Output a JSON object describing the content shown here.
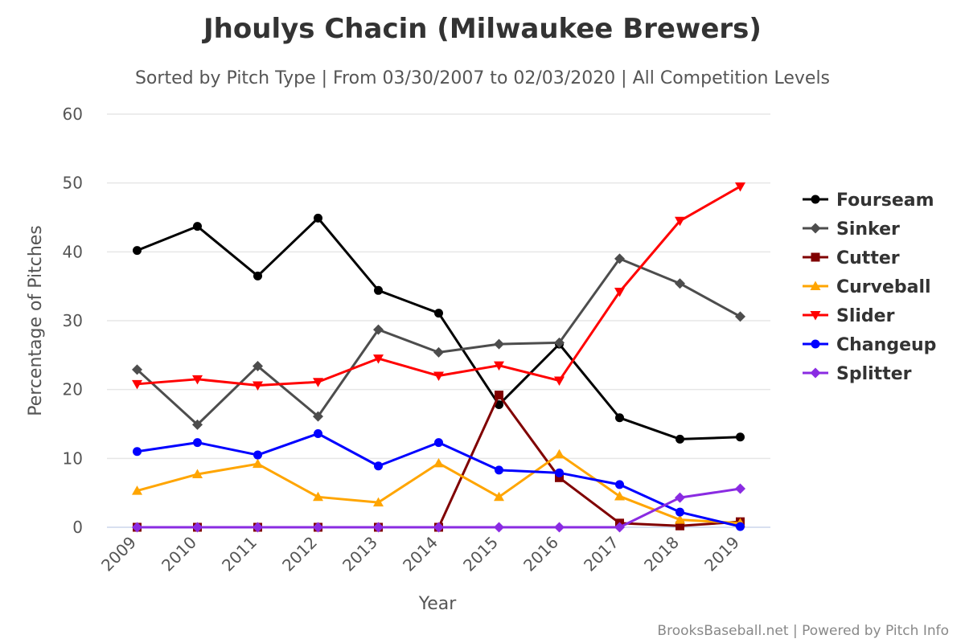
{
  "chart_data": {
    "type": "line",
    "title": "Jhoulys Chacin (Milwaukee Brewers)",
    "subtitle": "Sorted by Pitch Type | From 03/30/2007 to 02/03/2020 | All Competition Levels",
    "xlabel": "Year",
    "ylabel": "Percentage of Pitches",
    "ylim": [
      0,
      60
    ],
    "yticks": [
      "0",
      "10",
      "20",
      "30",
      "40",
      "50",
      "60"
    ],
    "categories": [
      "2009",
      "2010",
      "2011",
      "2012",
      "2013",
      "2014",
      "2015",
      "2016",
      "2017",
      "2018",
      "2019"
    ],
    "legend_position": "right",
    "credits": "BrooksBaseball.net | Powered by Pitch Info",
    "series": [
      {
        "name": "Fourseam",
        "color": "#000000",
        "marker": "circle",
        "values": [
          40.2,
          43.7,
          36.5,
          44.9,
          34.4,
          31.1,
          17.8,
          26.6,
          15.9,
          12.8,
          13.1
        ]
      },
      {
        "name": "Sinker",
        "color": "#4d4d4d",
        "marker": "diamond",
        "values": [
          22.9,
          14.9,
          23.4,
          16.1,
          28.7,
          25.4,
          26.6,
          26.8,
          39.0,
          35.4,
          30.6
        ]
      },
      {
        "name": "Cutter",
        "color": "#800000",
        "marker": "square",
        "values": [
          0,
          0,
          0,
          0,
          0,
          0,
          19.2,
          7.2,
          0.6,
          0.2,
          0.8
        ]
      },
      {
        "name": "Curveball",
        "color": "#ffa500",
        "marker": "triangle",
        "values": [
          5.3,
          7.7,
          9.2,
          4.4,
          3.6,
          9.3,
          4.4,
          10.6,
          4.5,
          1.1,
          0.6
        ]
      },
      {
        "name": "Slider",
        "color": "#ff0000",
        "marker": "triangle-down",
        "values": [
          20.8,
          21.5,
          20.6,
          21.1,
          24.5,
          22.0,
          23.5,
          21.3,
          34.2,
          44.5,
          49.5
        ]
      },
      {
        "name": "Changeup",
        "color": "#0000ff",
        "marker": "circle",
        "values": [
          11.0,
          12.3,
          10.5,
          13.6,
          8.9,
          12.3,
          8.3,
          7.9,
          6.2,
          2.2,
          0.1
        ]
      },
      {
        "name": "Splitter",
        "color": "#8a2be2",
        "marker": "diamond",
        "values": [
          0,
          0,
          0,
          0,
          0,
          0,
          0,
          0,
          0,
          4.3,
          5.6
        ]
      }
    ]
  }
}
